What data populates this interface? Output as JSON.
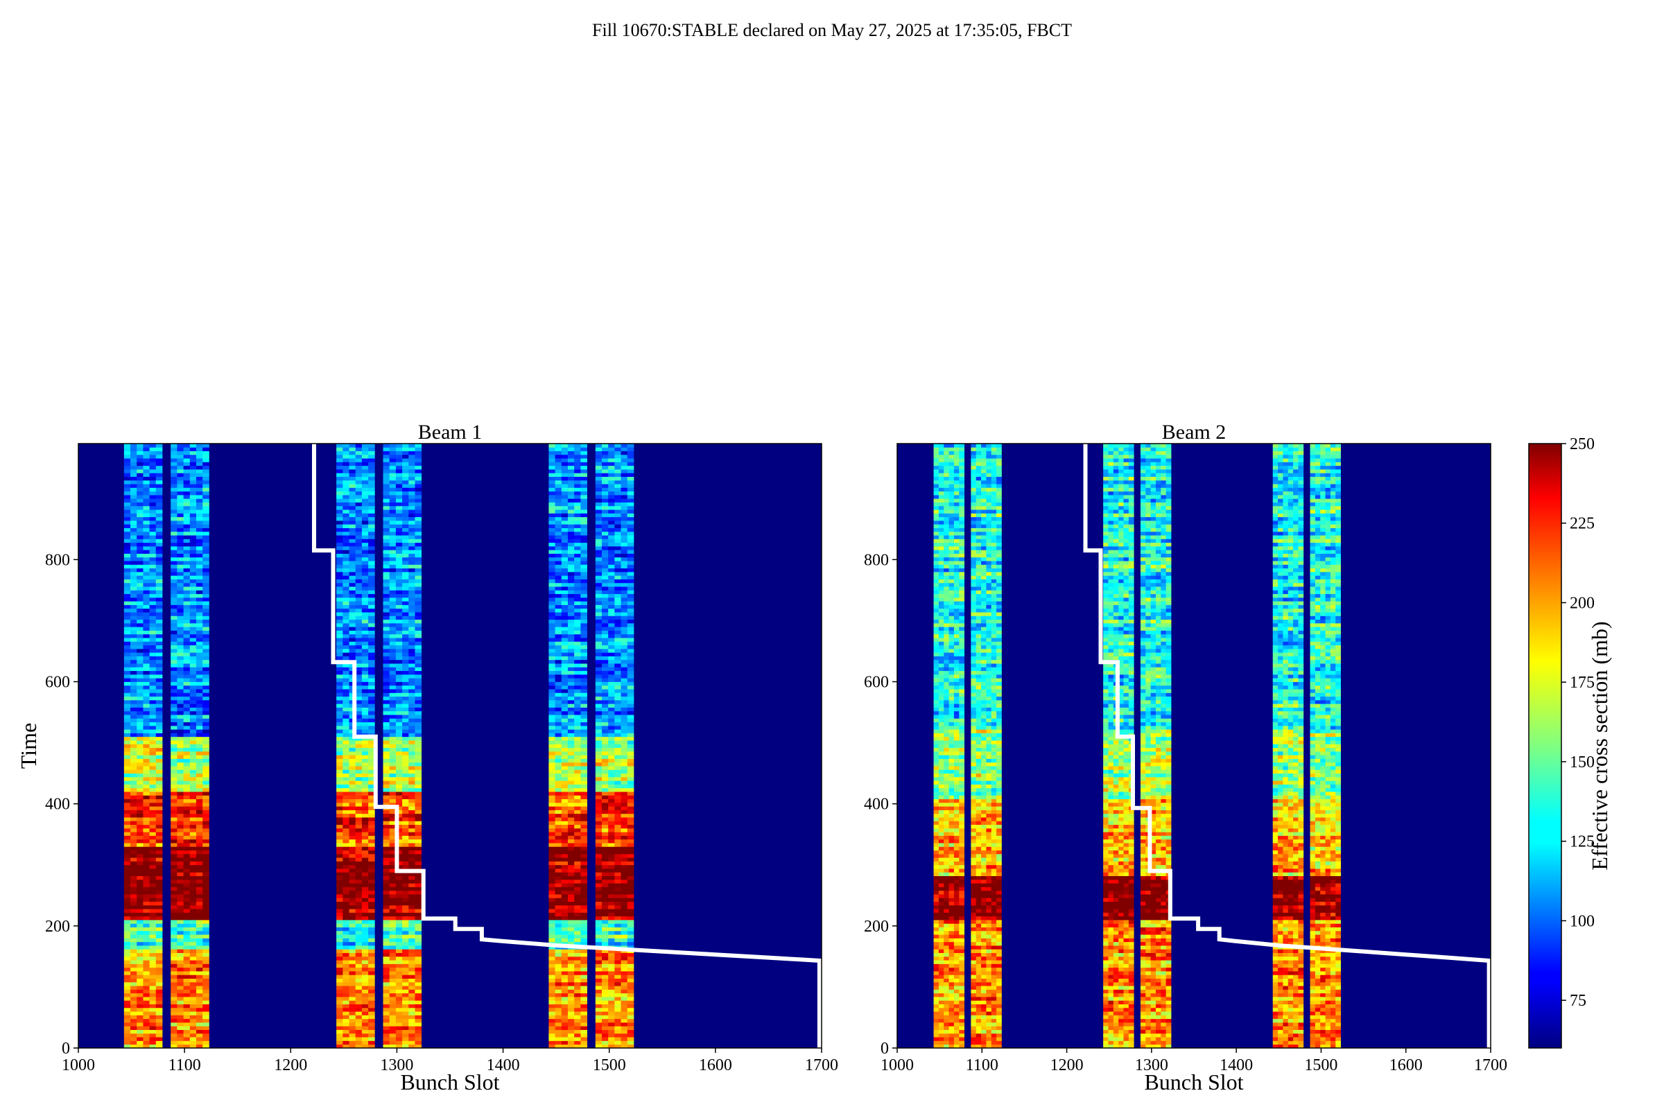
{
  "figure": {
    "title": "Fill 10670:STABLE declared on May 27, 2025 at 17:35:05, FBCT"
  },
  "chart_data": [
    {
      "type": "heatmap",
      "title": "Beam 1",
      "xlabel": "Bunch Slot",
      "ylabel": "Time",
      "xlim": [
        1000,
        1700
      ],
      "ylim": [
        0,
        990
      ],
      "xticks": [
        "1000",
        "1100",
        "1200",
        "1300",
        "1400",
        "1500",
        "1600",
        "1700"
      ],
      "yticks": [
        "0",
        "200",
        "400",
        "600",
        "800"
      ],
      "filled_bands": [
        [
          1043,
          1079
        ],
        [
          1087,
          1123
        ],
        [
          1243,
          1279
        ],
        [
          1287,
          1323
        ],
        [
          1443,
          1479
        ],
        [
          1487,
          1523
        ]
      ],
      "cross_section_regimes_mb": [
        {
          "time": [
            0,
            160
          ],
          "level": 200
        },
        {
          "time": [
            160,
            210
          ],
          "level": 140
        },
        {
          "time": [
            210,
            330
          ],
          "level": 250
        },
        {
          "time": [
            330,
            420
          ],
          "level": 215
        },
        {
          "time": [
            420,
            510
          ],
          "level": 165
        },
        {
          "time": [
            510,
            990
          ],
          "level": 110
        }
      ],
      "background_level_mb": 60,
      "overlay_curve": {
        "color": "#ffffff",
        "points": [
          [
            1222,
            990
          ],
          [
            1222,
            815
          ],
          [
            1240,
            815
          ],
          [
            1240,
            632
          ],
          [
            1260,
            632
          ],
          [
            1260,
            510
          ],
          [
            1280,
            510
          ],
          [
            1280,
            395
          ],
          [
            1300,
            395
          ],
          [
            1300,
            290
          ],
          [
            1325,
            290
          ],
          [
            1325,
            212
          ],
          [
            1355,
            212
          ],
          [
            1355,
            195
          ],
          [
            1380,
            195
          ],
          [
            1380,
            178
          ],
          [
            1400,
            175
          ],
          [
            1450,
            168
          ],
          [
            1500,
            163
          ],
          [
            1550,
            158
          ],
          [
            1600,
            153
          ],
          [
            1650,
            148
          ],
          [
            1698,
            143
          ],
          [
            1698,
            0
          ]
        ]
      }
    },
    {
      "type": "heatmap",
      "title": "Beam 2",
      "xlabel": "Bunch Slot",
      "ylabel": "",
      "xlim": [
        1000,
        1700
      ],
      "ylim": [
        0,
        990
      ],
      "xticks": [
        "1000",
        "1100",
        "1200",
        "1300",
        "1400",
        "1500",
        "1600",
        "1700"
      ],
      "yticks": [
        "0",
        "200",
        "400",
        "600",
        "800"
      ],
      "filled_bands": [
        [
          1043,
          1079
        ],
        [
          1087,
          1123
        ],
        [
          1243,
          1279
        ],
        [
          1287,
          1323
        ],
        [
          1443,
          1479
        ],
        [
          1487,
          1523
        ]
      ],
      "cross_section_regimes_mb": [
        {
          "time": [
            0,
            210
          ],
          "level": 200
        },
        {
          "time": [
            210,
            280
          ],
          "level": 250
        },
        {
          "time": [
            280,
            410
          ],
          "level": 190
        },
        {
          "time": [
            410,
            520
          ],
          "level": 160
        },
        {
          "time": [
            520,
            990
          ],
          "level": 135
        }
      ],
      "background_level_mb": 60,
      "overlay_curve": {
        "color": "#ffffff",
        "points": [
          [
            1222,
            990
          ],
          [
            1222,
            815
          ],
          [
            1240,
            815
          ],
          [
            1240,
            632
          ],
          [
            1260,
            632
          ],
          [
            1260,
            510
          ],
          [
            1278,
            510
          ],
          [
            1278,
            393
          ],
          [
            1298,
            393
          ],
          [
            1298,
            290
          ],
          [
            1322,
            290
          ],
          [
            1322,
            212
          ],
          [
            1355,
            212
          ],
          [
            1355,
            195
          ],
          [
            1380,
            195
          ],
          [
            1380,
            178
          ],
          [
            1400,
            175
          ],
          [
            1450,
            168
          ],
          [
            1500,
            163
          ],
          [
            1550,
            158
          ],
          [
            1600,
            153
          ],
          [
            1650,
            148
          ],
          [
            1698,
            143
          ],
          [
            1698,
            0
          ]
        ]
      }
    }
  ],
  "colorbar": {
    "label": "Effective cross section (mb)",
    "colormap": "jet",
    "range": [
      60,
      250
    ],
    "ticks": [
      "75",
      "100",
      "125",
      "150",
      "175",
      "200",
      "225",
      "250"
    ]
  }
}
